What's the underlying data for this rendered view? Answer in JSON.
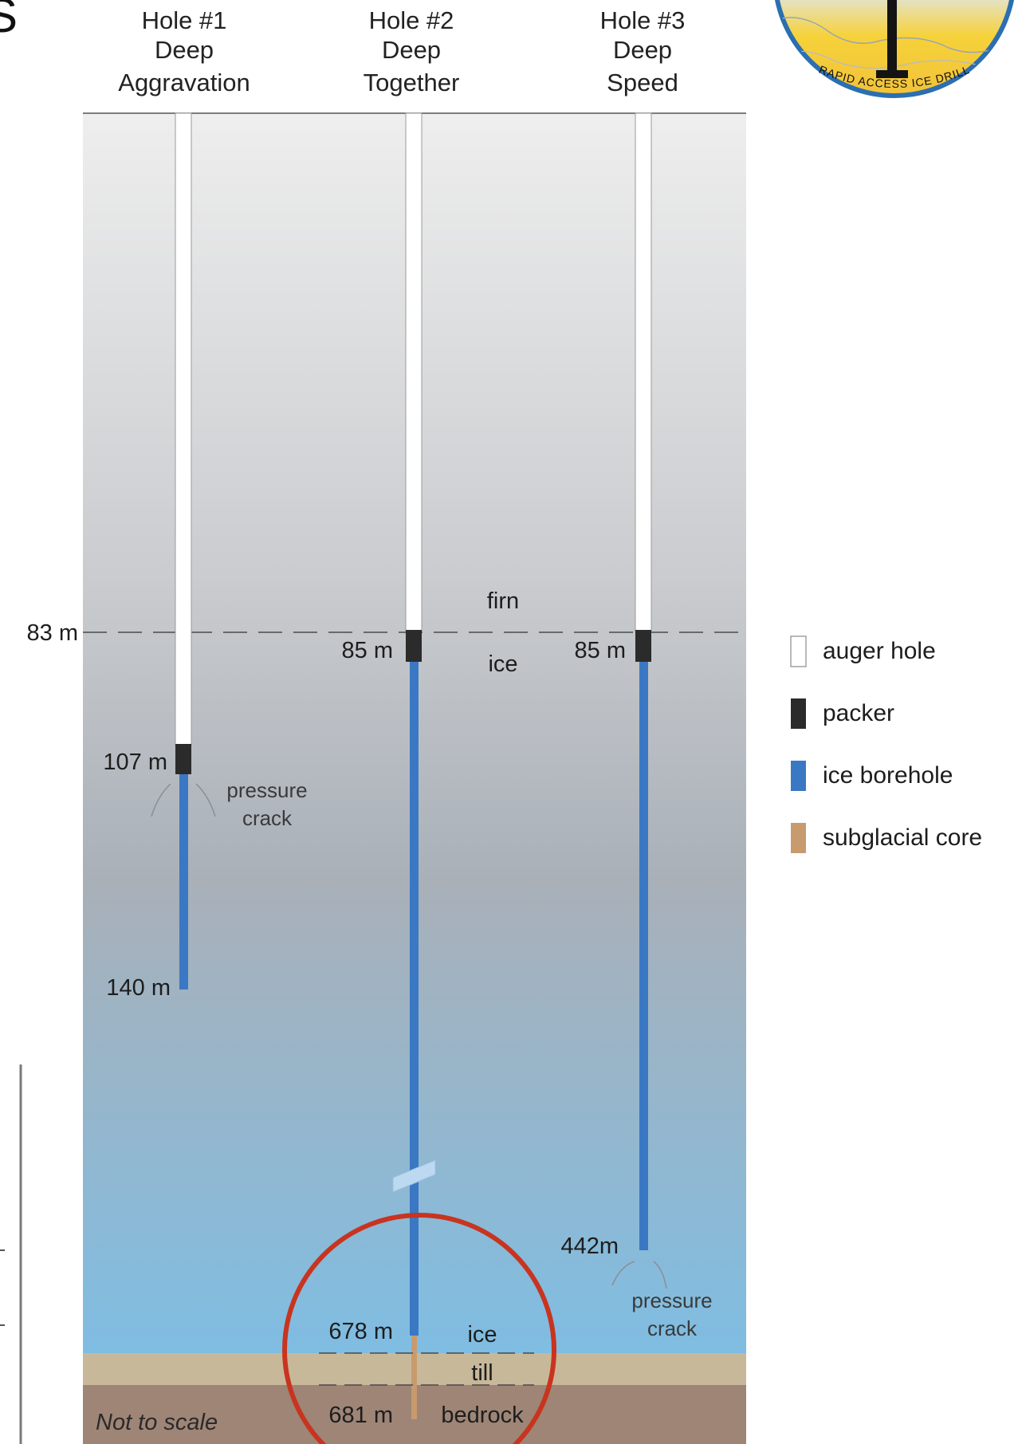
{
  "holes": [
    {
      "title": "Hole #1",
      "name_line1": "Deep",
      "name_line2": "Aggravation",
      "packer_depth": "107 m",
      "bottom_depth": "140 m",
      "note_line1": "pressure",
      "note_line2": "crack"
    },
    {
      "title": "Hole #2",
      "name_line1": "Deep",
      "name_line2": "Together",
      "packer_depth": "85 m",
      "bottom_ice_depth": "678 m",
      "bottom_depth": "681 m"
    },
    {
      "title": "Hole #3",
      "name_line1": "Deep",
      "name_line2": "Speed",
      "packer_depth": "85 m",
      "bottom_depth": "442m",
      "note_line1": "pressure",
      "note_line2": "crack"
    }
  ],
  "firn_ice_boundary": {
    "depth": "83 m",
    "above": "firn",
    "below": "ice"
  },
  "bottom_layers": {
    "ice": "ice",
    "till": "till",
    "bedrock": "bedrock"
  },
  "scale_note": "Not to scale",
  "legend": [
    {
      "label": "auger hole",
      "color": "#ffffff"
    },
    {
      "label": "packer",
      "color": "#2b2b2b"
    },
    {
      "label": "ice borehole",
      "color": "#3a78c4"
    },
    {
      "label": "subglacial core",
      "color": "#c79b6e"
    }
  ],
  "logo": {
    "text": "RAPID ACCESS ICE DRILL"
  },
  "colors": {
    "ice_top": "#eeeeee",
    "ice_mid": "#a9b0b8",
    "ice_bottom": "#7fbde2",
    "till": "#c8b89a",
    "bedrock": "#9e8576",
    "highlight_circle": "#c8341f"
  }
}
